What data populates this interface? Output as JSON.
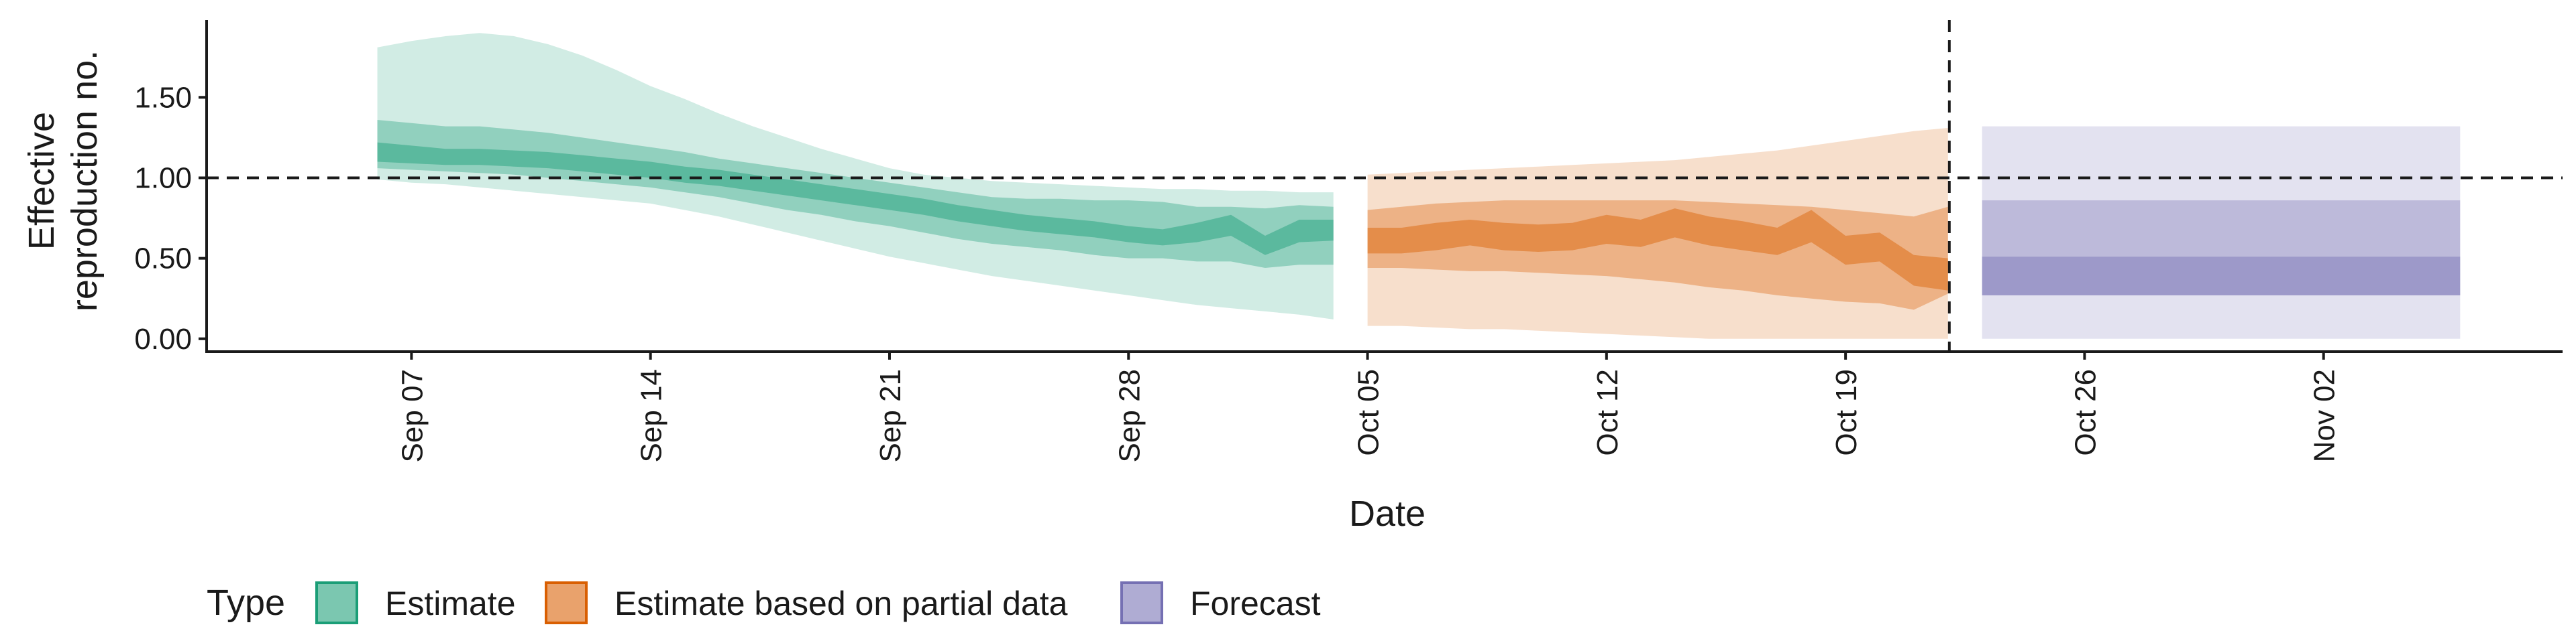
{
  "chart_data": {
    "type": "area",
    "xlabel": "Date",
    "ylabel": [
      "Effective",
      "reproduction no."
    ],
    "ylim": [
      -0.08,
      1.98
    ],
    "xlim": [
      "2020-09-01",
      "2020-11-09"
    ],
    "y_ticks": [
      {
        "value": 0,
        "label": "0.00"
      },
      {
        "value": 0.5,
        "label": "0.50"
      },
      {
        "value": 1,
        "label": "1.00"
      },
      {
        "value": 1.5,
        "label": "1.50"
      }
    ],
    "x_ticks": [
      {
        "date": "2020-09-07",
        "label": "Sep 07"
      },
      {
        "date": "2020-09-14",
        "label": "Sep 14"
      },
      {
        "date": "2020-09-21",
        "label": "Sep 21"
      },
      {
        "date": "2020-09-28",
        "label": "Sep 28"
      },
      {
        "date": "2020-10-05",
        "label": "Oct 05"
      },
      {
        "date": "2020-10-12",
        "label": "Oct 12"
      },
      {
        "date": "2020-10-19",
        "label": "Oct 19"
      },
      {
        "date": "2020-10-26",
        "label": "Oct 26"
      },
      {
        "date": "2020-11-02",
        "label": "Nov 02"
      }
    ],
    "reference_line": {
      "y": 1.0,
      "style": "dashed"
    },
    "forecast_date_line": {
      "date": "2020-10-22",
      "style": "dashed"
    },
    "grid": false,
    "legend": {
      "title": "Type",
      "position": "bottom-left",
      "entries": [
        {
          "label": "Estimate",
          "color": "#1b9e77"
        },
        {
          "label": "Estimate based on partial data",
          "color": "#d95f02"
        },
        {
          "label": "Forecast",
          "color": "#7570b3"
        }
      ]
    },
    "band_opacity": {
      "outer": 0.2,
      "middle": 0.35,
      "inner": 0.45
    },
    "series": [
      {
        "type": "Estimate",
        "color": "#1b9e77",
        "x": [
          "2020-09-06",
          "2020-09-07",
          "2020-09-08",
          "2020-09-09",
          "2020-09-10",
          "2020-09-11",
          "2020-09-12",
          "2020-09-13",
          "2020-09-14",
          "2020-09-15",
          "2020-09-16",
          "2020-09-17",
          "2020-09-18",
          "2020-09-19",
          "2020-09-20",
          "2020-09-21",
          "2020-09-22",
          "2020-09-23",
          "2020-09-24",
          "2020-09-25",
          "2020-09-26",
          "2020-09-27",
          "2020-09-28",
          "2020-09-29",
          "2020-09-30",
          "2020-10-01",
          "2020-10-02",
          "2020-10-03",
          "2020-10-04"
        ],
        "outer_lower": [
          0.99,
          0.97,
          0.96,
          0.94,
          0.92,
          0.9,
          0.88,
          0.86,
          0.84,
          0.8,
          0.76,
          0.71,
          0.66,
          0.61,
          0.56,
          0.51,
          0.47,
          0.43,
          0.39,
          0.36,
          0.33,
          0.3,
          0.27,
          0.24,
          0.21,
          0.19,
          0.17,
          0.15,
          0.12
        ],
        "outer_upper": [
          1.81,
          1.85,
          1.88,
          1.9,
          1.88,
          1.83,
          1.76,
          1.67,
          1.57,
          1.49,
          1.4,
          1.32,
          1.25,
          1.18,
          1.12,
          1.06,
          1.02,
          1.0,
          0.98,
          0.97,
          0.96,
          0.95,
          0.94,
          0.93,
          0.93,
          0.92,
          0.92,
          0.91,
          0.91
        ],
        "mid_lower": [
          1.06,
          1.05,
          1.04,
          1.03,
          1.02,
          1.0,
          0.98,
          0.96,
          0.94,
          0.91,
          0.88,
          0.84,
          0.8,
          0.77,
          0.73,
          0.7,
          0.66,
          0.62,
          0.59,
          0.57,
          0.55,
          0.52,
          0.5,
          0.5,
          0.48,
          0.48,
          0.44,
          0.46,
          0.46
        ],
        "mid_upper": [
          1.36,
          1.34,
          1.32,
          1.32,
          1.3,
          1.28,
          1.25,
          1.22,
          1.19,
          1.16,
          1.12,
          1.09,
          1.06,
          1.03,
          1.0,
          0.97,
          0.94,
          0.91,
          0.88,
          0.87,
          0.87,
          0.86,
          0.86,
          0.85,
          0.82,
          0.82,
          0.81,
          0.83,
          0.82
        ],
        "inner_lower": [
          1.1,
          1.09,
          1.08,
          1.08,
          1.07,
          1.06,
          1.04,
          1.02,
          1.0,
          0.97,
          0.95,
          0.92,
          0.89,
          0.86,
          0.83,
          0.8,
          0.77,
          0.73,
          0.7,
          0.67,
          0.65,
          0.63,
          0.6,
          0.58,
          0.6,
          0.64,
          0.52,
          0.6,
          0.61
        ],
        "inner_upper": [
          1.22,
          1.2,
          1.18,
          1.18,
          1.17,
          1.16,
          1.14,
          1.12,
          1.1,
          1.07,
          1.05,
          1.02,
          0.99,
          0.96,
          0.93,
          0.9,
          0.87,
          0.83,
          0.8,
          0.77,
          0.75,
          0.73,
          0.7,
          0.68,
          0.72,
          0.77,
          0.64,
          0.74,
          0.74
        ]
      },
      {
        "type": "Estimate based on partial data",
        "color": "#d95f02",
        "x": [
          "2020-10-05",
          "2020-10-06",
          "2020-10-07",
          "2020-10-08",
          "2020-10-09",
          "2020-10-10",
          "2020-10-11",
          "2020-10-12",
          "2020-10-13",
          "2020-10-14",
          "2020-10-15",
          "2020-10-16",
          "2020-10-17",
          "2020-10-18",
          "2020-10-19",
          "2020-10-20",
          "2020-10-21",
          "2020-10-22"
        ],
        "outer_lower": [
          0.08,
          0.08,
          0.07,
          0.06,
          0.06,
          0.05,
          0.04,
          0.03,
          0.02,
          0.01,
          0.0,
          0.0,
          0.0,
          0.0,
          0.0,
          0.0,
          0.0,
          0.0
        ],
        "outer_upper": [
          1.02,
          1.03,
          1.04,
          1.05,
          1.06,
          1.07,
          1.08,
          1.09,
          1.1,
          1.11,
          1.13,
          1.15,
          1.17,
          1.2,
          1.23,
          1.26,
          1.29,
          1.31
        ],
        "mid_lower": [
          0.44,
          0.44,
          0.43,
          0.42,
          0.42,
          0.41,
          0.4,
          0.39,
          0.37,
          0.35,
          0.32,
          0.3,
          0.27,
          0.25,
          0.23,
          0.22,
          0.18,
          0.28
        ],
        "mid_upper": [
          0.8,
          0.82,
          0.84,
          0.85,
          0.86,
          0.86,
          0.86,
          0.86,
          0.86,
          0.86,
          0.85,
          0.84,
          0.83,
          0.82,
          0.8,
          0.78,
          0.76,
          0.82
        ],
        "inner_lower": [
          0.53,
          0.53,
          0.55,
          0.58,
          0.55,
          0.54,
          0.55,
          0.59,
          0.57,
          0.63,
          0.58,
          0.55,
          0.52,
          0.6,
          0.46,
          0.48,
          0.33,
          0.3
        ],
        "inner_upper": [
          0.69,
          0.69,
          0.72,
          0.74,
          0.72,
          0.71,
          0.72,
          0.77,
          0.74,
          0.81,
          0.76,
          0.73,
          0.69,
          0.8,
          0.64,
          0.66,
          0.52,
          0.5
        ]
      },
      {
        "type": "Forecast",
        "color": "#7570b3",
        "x": [
          "2020-10-23",
          "2020-11-06"
        ],
        "outer_lower": [
          0.0,
          0.0
        ],
        "outer_upper": [
          1.32,
          1.32
        ],
        "mid_lower": [
          0.27,
          0.27
        ],
        "mid_upper": [
          0.86,
          0.86
        ],
        "inner_lower": [
          0.27,
          0.27
        ],
        "inner_upper": [
          0.51,
          0.51
        ]
      }
    ]
  }
}
